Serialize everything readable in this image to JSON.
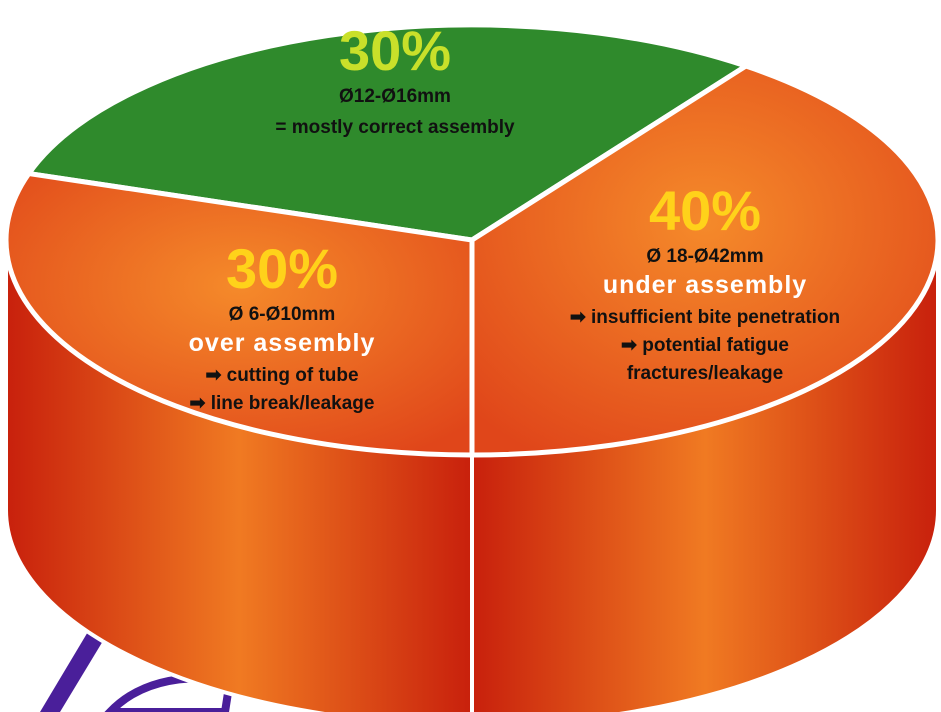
{
  "chart_data": {
    "type": "pie",
    "categories": [
      "Ø12-Ø16mm",
      "Ø 18-Ø42mm",
      "Ø 6-Ø10mm"
    ],
    "values": [
      30,
      40,
      30
    ],
    "value_labels": [
      "30%",
      "40%",
      "30%"
    ],
    "colors": [
      "#2f8a2c",
      "#ec6a1e",
      "#ec6a1e"
    ],
    "assembly": [
      "= mostly correct assembly",
      "under assembly",
      "over assembly"
    ],
    "effects": [
      [],
      [
        "➡ insufficient bite penetration",
        "➡ potential fatigue",
        "fractures/leakage"
      ],
      [
        "➡ cutting of tube",
        "➡ line break/leakage"
      ]
    ]
  }
}
